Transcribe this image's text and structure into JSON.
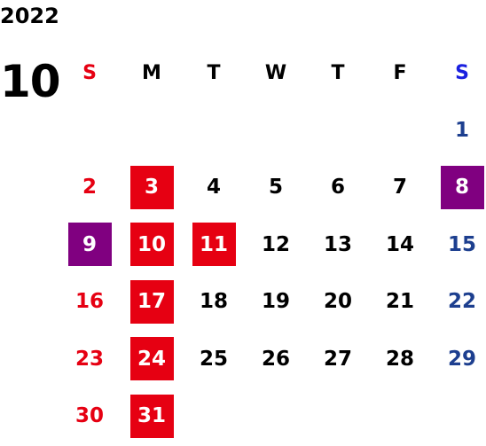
{
  "year": "2022",
  "month": "10",
  "colors": {
    "sunday_text": "#e60012",
    "saturday_text": "#1d3f8f",
    "holiday_box": "#e60012",
    "special_box": "#800080"
  },
  "weekdays": [
    {
      "label": "S",
      "kind": "sun"
    },
    {
      "label": "M",
      "kind": ""
    },
    {
      "label": "T",
      "kind": ""
    },
    {
      "label": "W",
      "kind": ""
    },
    {
      "label": "T",
      "kind": ""
    },
    {
      "label": "F",
      "kind": ""
    },
    {
      "label": "S",
      "kind": "sat"
    }
  ],
  "weeks": [
    [
      null,
      null,
      null,
      null,
      null,
      null,
      {
        "d": "1",
        "k": "sat"
      }
    ],
    [
      {
        "d": "2",
        "k": "sun"
      },
      {
        "d": "3",
        "box": "red"
      },
      {
        "d": "4"
      },
      {
        "d": "5"
      },
      {
        "d": "6"
      },
      {
        "d": "7"
      },
      {
        "d": "8",
        "box": "purple"
      }
    ],
    [
      {
        "d": "9",
        "box": "purple"
      },
      {
        "d": "10",
        "box": "red"
      },
      {
        "d": "11",
        "box": "red"
      },
      {
        "d": "12"
      },
      {
        "d": "13"
      },
      {
        "d": "14"
      },
      {
        "d": "15",
        "k": "sat"
      }
    ],
    [
      {
        "d": "16",
        "k": "sun"
      },
      {
        "d": "17",
        "box": "red"
      },
      {
        "d": "18"
      },
      {
        "d": "19"
      },
      {
        "d": "20"
      },
      {
        "d": "21"
      },
      {
        "d": "22",
        "k": "sat"
      }
    ],
    [
      {
        "d": "23",
        "k": "sun"
      },
      {
        "d": "24",
        "box": "red"
      },
      {
        "d": "25"
      },
      {
        "d": "26"
      },
      {
        "d": "27"
      },
      {
        "d": "28"
      },
      {
        "d": "29",
        "k": "sat"
      }
    ],
    [
      {
        "d": "30",
        "k": "sun"
      },
      {
        "d": "31",
        "box": "red"
      },
      null,
      null,
      null,
      null,
      null
    ]
  ]
}
